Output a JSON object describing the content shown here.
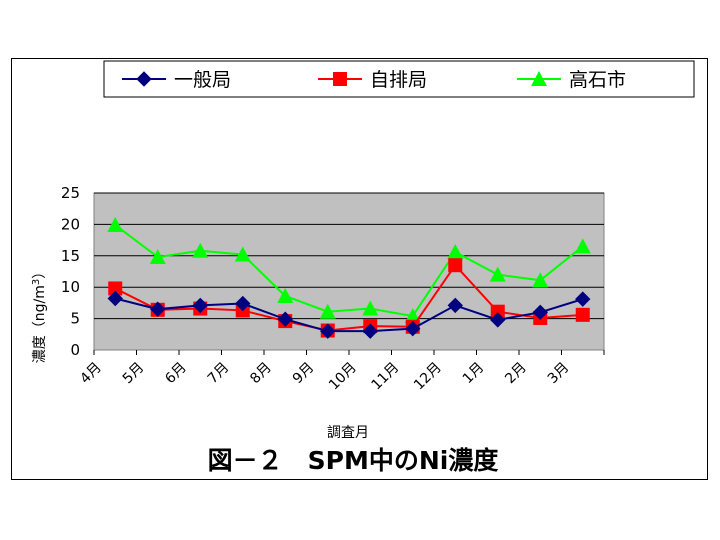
{
  "chart_data": {
    "type": "line",
    "title": "図－２　SPM中のNi濃度",
    "xlabel": "調査月",
    "ylabel": "濃度（ng/m",
    "ylabel_superscript": "3",
    "ylabel_close": "）",
    "categories": [
      "4月",
      "5月",
      "6月",
      "7月",
      "8月",
      "9月",
      "10月",
      "11月",
      "12月",
      "1月",
      "2月",
      "3月"
    ],
    "ylim": [
      0,
      25
    ],
    "yticks": [
      "0",
      "5",
      "10",
      "15",
      "20",
      "25"
    ],
    "grid": true,
    "legend_position": "top",
    "series": [
      {
        "name": "一般局",
        "color": "#000080",
        "marker": "diamond",
        "values": [
          8.2,
          6.5,
          7.1,
          7.4,
          4.9,
          3.0,
          3.0,
          3.4,
          7.1,
          4.8,
          6.0,
          8.1
        ]
      },
      {
        "name": "自排局",
        "color": "#ff0000",
        "marker": "square",
        "values": [
          9.8,
          6.4,
          6.6,
          6.3,
          4.6,
          3.1,
          3.8,
          3.7,
          13.5,
          6.1,
          5.1,
          5.6
        ]
      },
      {
        "name": "高石市",
        "color": "#00ff00",
        "marker": "triangle",
        "values": [
          19.9,
          14.8,
          15.8,
          15.2,
          8.6,
          6.1,
          6.6,
          5.4,
          15.6,
          12.0,
          11.1,
          16.5
        ]
      }
    ],
    "colors": {
      "plot_background": "#c0c0c0"
    }
  }
}
